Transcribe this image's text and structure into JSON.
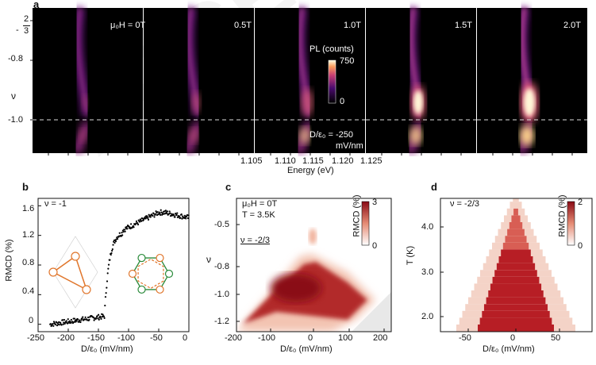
{
  "panel_a": {
    "letter": "a",
    "y_axis_label": "ν",
    "y_ticks": [
      {
        "num": "2",
        "den": "3",
        "prefix": "-",
        "v": -0.667
      },
      {
        "text": "-0.8",
        "v": -0.8
      },
      {
        "text": "-1.0",
        "v": -1.0
      }
    ],
    "x_axis_label": "Energy (eV)",
    "x_ticks": [
      "1.105",
      "1.110",
      "1.115",
      "1.120",
      "1.125"
    ],
    "field_labels": [
      "μ₀H = 0T",
      "0.5T",
      "1.0T",
      "1.5T",
      "2.0T"
    ],
    "colorbar_label": "PL (counts)",
    "colorbar_max": "750",
    "colorbar_min": "0",
    "field_annotation_line1": "D/ε₀ = -250",
    "field_annotation_line2": "mV/nm",
    "dashed_line_nu": -1.0,
    "colors": {
      "low": "#000000",
      "mid": "#7a1a8c",
      "high": "#f08a4b",
      "top": "#ffffe0"
    }
  },
  "panel_b": {
    "letter": "b",
    "annotation": "ν = -1",
    "ylabel": "RMCD (%)",
    "xlabel": "D/ε₀ (mV/nm)",
    "y_ticks": [
      "0",
      "0.4",
      "0.8",
      "1.2",
      "1.6"
    ],
    "x_ticks": [
      "-250",
      "-200",
      "-150",
      "-100",
      "-50",
      "0"
    ]
  },
  "panel_c": {
    "letter": "c",
    "annotation_line1": "μ₀H = 0T",
    "annotation_line2": "T = 3.5K",
    "annotation_nu": "ν = -2/3",
    "ylabel": "ν",
    "xlabel": "D/ε₀ (mV/nm)",
    "y_ticks": [
      "-0.5",
      "-0.8",
      "-1.0",
      "-1.2"
    ],
    "x_ticks": [
      "-200",
      "-100",
      "0",
      "100",
      "200"
    ],
    "colorbar_label": "RMCD (%)",
    "colorbar_max": "3",
    "colorbar_min": "0"
  },
  "panel_d": {
    "letter": "d",
    "annotation": "ν = -2/3",
    "ylabel": "T (K)",
    "xlabel": "D/ε₀ (mV/nm)",
    "y_ticks": [
      "2.0",
      "3.0",
      "4.0"
    ],
    "x_ticks": [
      "-50",
      "0",
      "50"
    ],
    "colorbar_label": "RMCD (%)",
    "colorbar_max": "2",
    "colorbar_min": "0"
  },
  "chart_data": [
    {
      "type": "heatmap",
      "panel": "a",
      "xlabel": "Energy (eV)",
      "ylabel": "ν",
      "xlim": [
        1.1,
        1.13
      ],
      "ylim": [
        -1.1,
        -0.62
      ],
      "series": [
        {
          "name": "μ₀H = 0T",
          "peak_energy": 1.113,
          "max_counts": 300
        },
        {
          "name": "0.5T",
          "peak_energy": 1.113,
          "max_counts": 350
        },
        {
          "name": "1.0T",
          "peak_energy": 1.113,
          "max_counts": 450
        },
        {
          "name": "1.5T",
          "peak_energy": 1.115,
          "max_counts": 650
        },
        {
          "name": "2.0T",
          "peak_energy": 1.116,
          "max_counts": 750
        }
      ]
    },
    {
      "type": "scatter",
      "panel": "b",
      "xlabel": "D/ε₀ (mV/nm)",
      "ylabel": "RMCD (%)",
      "xlim": [
        -250,
        0
      ],
      "ylim": [
        -0.1,
        1.7
      ],
      "x": [
        -230,
        -220,
        -210,
        -200,
        -190,
        -180,
        -170,
        -160,
        -150,
        -140,
        -135,
        -130,
        -125,
        -120,
        -115,
        -110,
        -100,
        -90,
        -80,
        -70,
        -60,
        -50,
        -40,
        -30,
        -20,
        -10,
        0
      ],
      "y": [
        0.0,
        0.02,
        0.03,
        0.05,
        0.06,
        0.08,
        0.1,
        0.12,
        0.15,
        0.3,
        0.6,
        0.95,
        1.1,
        1.2,
        1.27,
        1.32,
        1.38,
        1.42,
        1.46,
        1.48,
        1.5,
        1.51,
        1.5,
        1.48,
        1.47,
        1.45,
        1.43
      ]
    },
    {
      "type": "heatmap",
      "panel": "c",
      "xlabel": "D/ε₀ (mV/nm)",
      "ylabel": "ν",
      "xlim": [
        -200,
        200
      ],
      "ylim": [
        -1.3,
        -0.4
      ],
      "zlim": [
        0,
        3
      ]
    },
    {
      "type": "heatmap",
      "panel": "d",
      "xlabel": "D/ε₀ (mV/nm)",
      "ylabel": "T (K)",
      "xlim": [
        -85,
        85
      ],
      "ylim": [
        1.5,
        4.7
      ],
      "zlim": [
        0,
        2
      ]
    }
  ]
}
